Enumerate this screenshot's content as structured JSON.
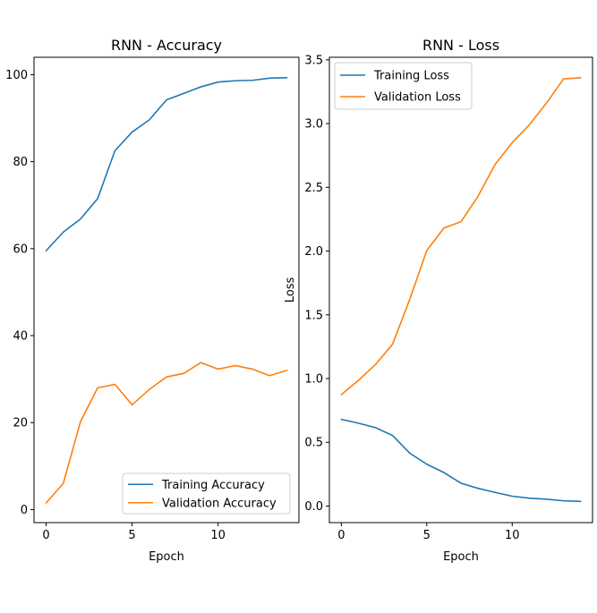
{
  "chart_data": [
    {
      "type": "line",
      "title": "RNN - Accuracy",
      "xlabel": "Epoch",
      "ylabel": "",
      "xlim": [
        -0.7,
        14.7
      ],
      "ylim": [
        -3.0,
        104.0
      ],
      "xticks": [
        0,
        5,
        10
      ],
      "yticks": [
        0,
        20,
        40,
        60,
        80,
        100
      ],
      "legend_position": "lower-right",
      "x": [
        0,
        1,
        2,
        3,
        4,
        5,
        6,
        7,
        8,
        9,
        10,
        11,
        12,
        13,
        14
      ],
      "series": [
        {
          "name": "Training Accuracy",
          "color": "#1f77b4",
          "values": [
            59.5,
            63.8,
            66.8,
            71.5,
            82.5,
            86.8,
            89.6,
            94.2,
            95.7,
            97.2,
            98.3,
            98.6,
            98.7,
            99.2,
            99.3
          ]
        },
        {
          "name": "Validation Accuracy",
          "color": "#ff7f0e",
          "values": [
            1.5,
            6.0,
            20.2,
            28.0,
            28.8,
            24.1,
            27.6,
            30.5,
            31.3,
            33.8,
            32.3,
            33.1,
            32.3,
            30.8,
            32.0
          ]
        }
      ]
    },
    {
      "type": "line",
      "title": "RNN - Loss",
      "xlabel": "Epoch",
      "ylabel": "Loss",
      "xlim": [
        -0.7,
        14.7
      ],
      "ylim": [
        -0.13,
        3.52
      ],
      "xticks": [
        0,
        5,
        10
      ],
      "yticks": [
        0.0,
        0.5,
        1.0,
        1.5,
        2.0,
        2.5,
        3.0,
        3.5
      ],
      "legend_position": "upper-left",
      "x": [
        0,
        1,
        2,
        3,
        4,
        5,
        6,
        7,
        8,
        9,
        10,
        11,
        12,
        13,
        14
      ],
      "series": [
        {
          "name": "Training Loss",
          "color": "#1f77b4",
          "values": [
            0.68,
            0.65,
            0.615,
            0.553,
            0.415,
            0.328,
            0.263,
            0.179,
            0.139,
            0.107,
            0.077,
            0.062,
            0.054,
            0.041,
            0.036
          ]
        },
        {
          "name": "Validation Loss",
          "color": "#ff7f0e",
          "values": [
            0.874,
            0.986,
            1.11,
            1.27,
            1.62,
            2.005,
            2.18,
            2.23,
            2.43,
            2.68,
            2.85,
            2.99,
            3.16,
            3.35,
            3.36
          ]
        }
      ]
    }
  ]
}
